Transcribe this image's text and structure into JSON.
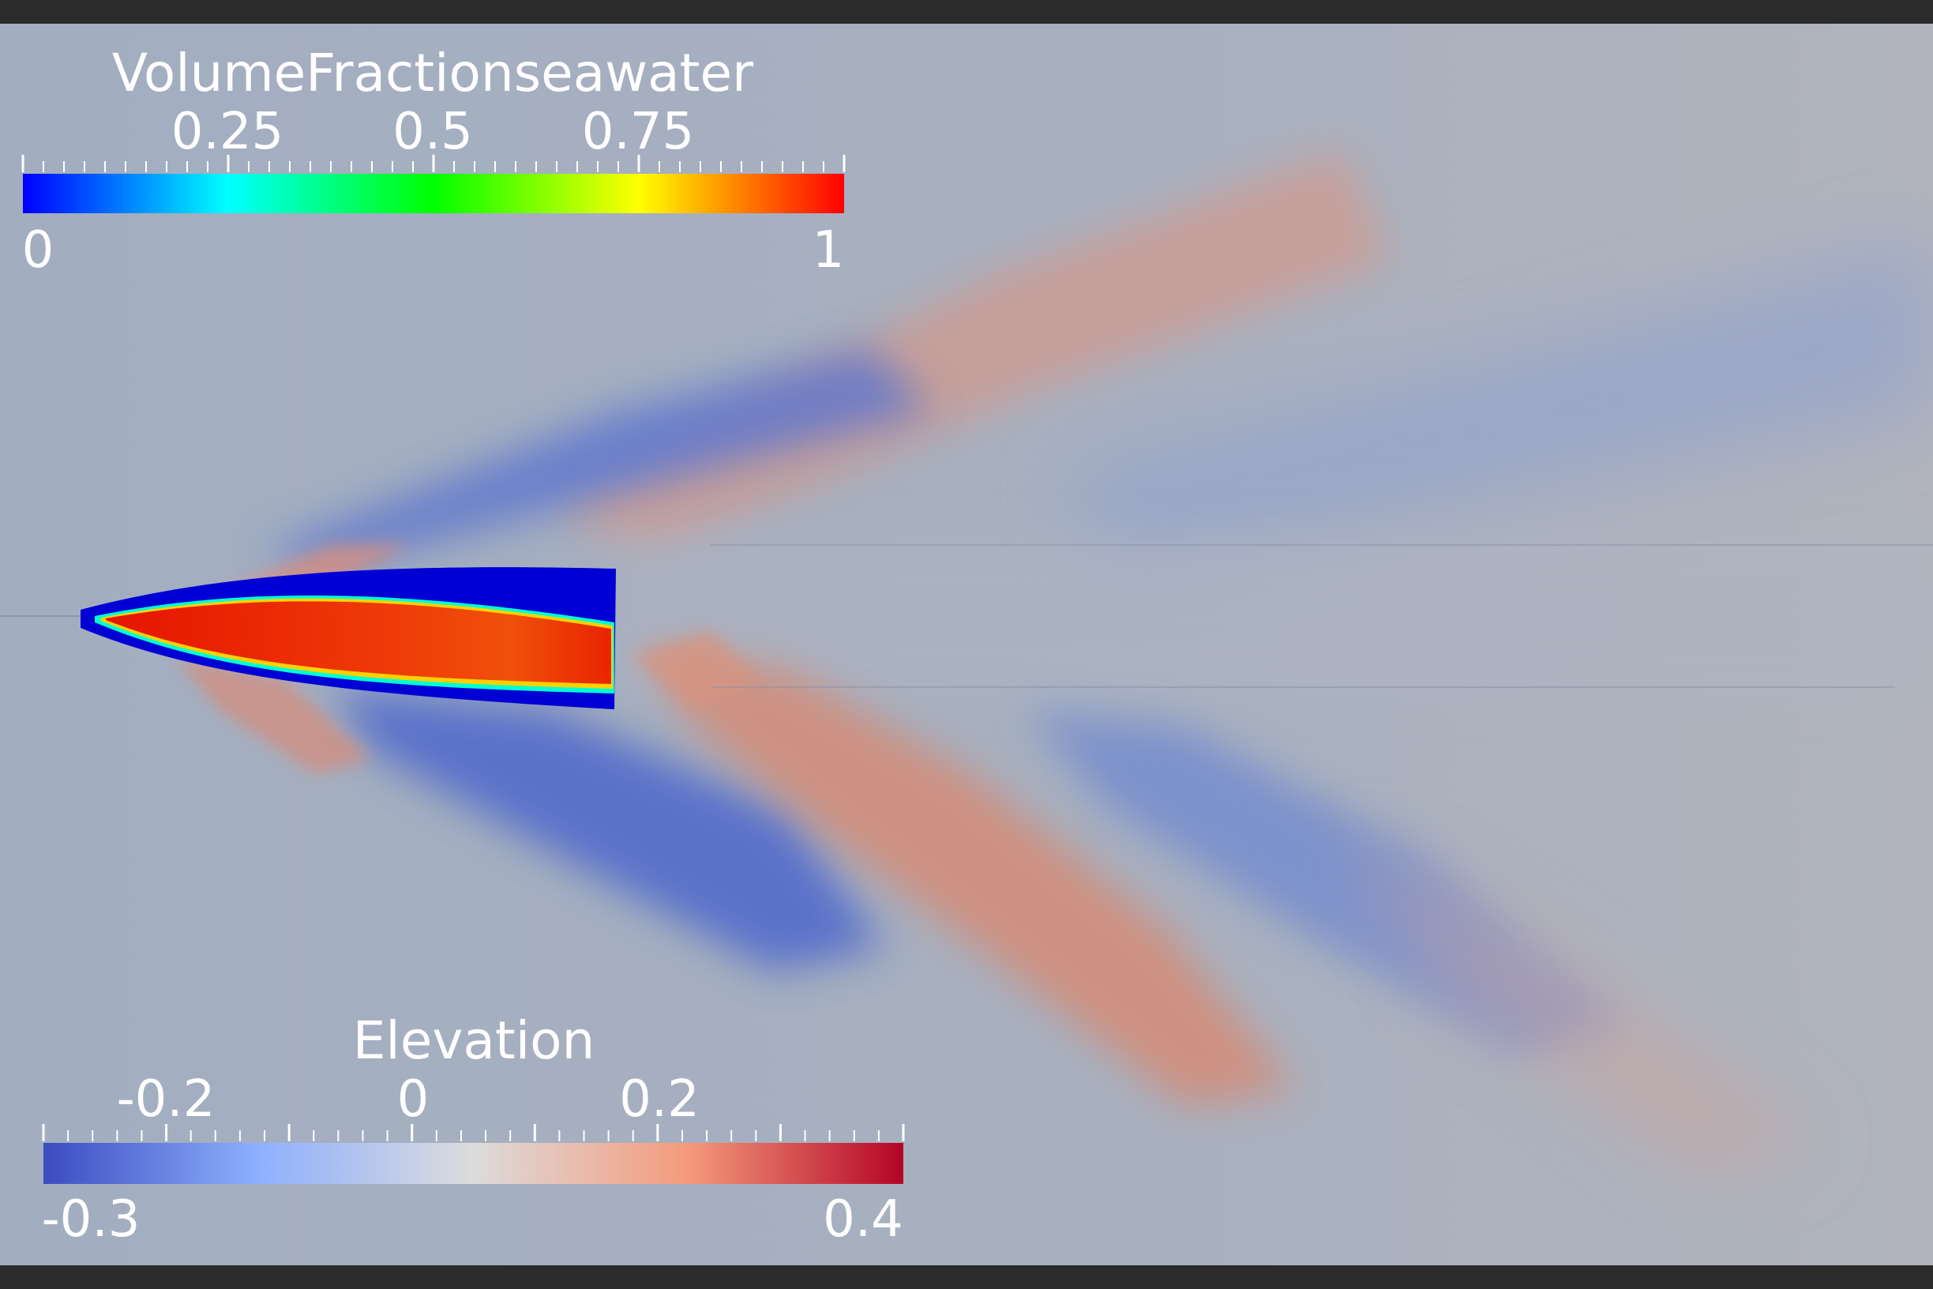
{
  "volume_fraction_legend": {
    "title": "VolumeFractionseawater",
    "tick_labels": [
      "0.25",
      "0.5",
      "0.75"
    ],
    "min_label": "0",
    "max_label": "1",
    "colormap": [
      "#0000ff",
      "#00ffff",
      "#00ff00",
      "#ffff00",
      "#ff0000"
    ]
  },
  "elevation_legend": {
    "title": "Elevation",
    "tick_labels": [
      "-0.2",
      "0",
      "0.2"
    ],
    "min_label": "-0.3",
    "max_label": "0.4",
    "colormap": [
      "#3b4cc0",
      "#8db0fe",
      "#dddcdc",
      "#f49a7b",
      "#b40426"
    ]
  },
  "colors": {
    "background_field": "#a4afc1",
    "frame_bars": "#2b2b2b"
  }
}
